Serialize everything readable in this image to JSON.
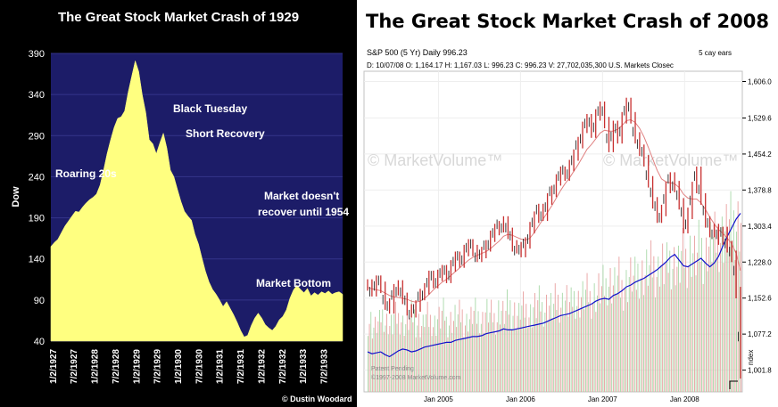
{
  "chart_data": [
    {
      "type": "area",
      "title": "The Great Stock Market Crash of 1929",
      "ylabel": "Dow",
      "ylim": [
        40,
        390
      ],
      "yticks": [
        40,
        90,
        140,
        190,
        240,
        290,
        340,
        390
      ],
      "xticks": [
        "1/2/1927",
        "7/2/1927",
        "1/2/1928",
        "7/2/1928",
        "1/2/1929",
        "7/2/1929",
        "1/2/1930",
        "7/2/1930",
        "1/2/1931",
        "7/2/1931",
        "1/2/1932",
        "7/2/1932",
        "1/2/1933",
        "7/2/1933"
      ],
      "x": [
        0,
        1,
        2,
        3,
        4,
        5,
        6,
        7,
        8,
        9,
        10,
        11,
        12,
        13,
        14,
        15,
        16,
        17,
        18,
        19,
        20,
        21,
        22,
        23,
        24,
        25,
        26,
        27,
        28,
        29,
        30,
        31,
        32,
        33,
        34,
        35,
        36,
        37,
        38,
        39,
        40,
        41,
        42,
        43,
        44,
        45,
        46,
        47,
        48,
        49,
        50,
        51,
        52,
        53,
        54,
        55,
        56,
        57,
        58,
        59,
        60,
        61,
        62,
        63,
        64,
        65,
        66,
        67,
        68,
        69,
        70,
        71,
        72,
        73,
        74,
        75,
        76,
        77,
        78,
        79,
        80,
        81,
        82,
        83
      ],
      "values": [
        155,
        160,
        164,
        172,
        180,
        186,
        192,
        198,
        197,
        203,
        208,
        212,
        215,
        219,
        230,
        248,
        268,
        285,
        300,
        311,
        313,
        320,
        343,
        362,
        381,
        368,
        340,
        318,
        285,
        280,
        268,
        281,
        293,
        275,
        248,
        240,
        225,
        210,
        198,
        192,
        187,
        170,
        158,
        141,
        125,
        112,
        103,
        97,
        90,
        82,
        88,
        80,
        72,
        63,
        53,
        45,
        47,
        59,
        68,
        74,
        68,
        60,
        56,
        53,
        58,
        66,
        70,
        78,
        92,
        102,
        108,
        103,
        99,
        104,
        95,
        99,
        96,
        100,
        98,
        101,
        97,
        99,
        100,
        97
      ],
      "fill_color": "#ffff80",
      "background": "#1c1c68",
      "annotations": [
        "Roaring 20s",
        "Black Tuesday",
        "Short Recovery",
        "Market doesn't",
        "recover until 1954",
        "Market Bottom"
      ],
      "credit": "© Dustin Woodard"
    },
    {
      "type": "line",
      "title": "The Great Stock Market Crash of 2008",
      "header": {
        "symbol": "S&P 500  (5 Yr) Daily   996.23",
        "period": "5 cay ears",
        "ohlc": "D: 10/07/08  O: 1,164.17  H: 1,167.03  L: 996.23  C: 996.23  V: 27,702,035,300  U.S. Markets Closec"
      },
      "watermark": "© MarketVolume™",
      "footer": [
        "Patent Pending",
        "©1997-2008 MarketVolume.com"
      ],
      "xticks": [
        "Jan 2005",
        "Jan 2006",
        "Jan 2007",
        "Jan 2008"
      ],
      "yticks": [
        "1,606.0",
        "1,529.6",
        "1,454.2",
        "1,378.8",
        "1,303.4",
        "1,228.0",
        "1,152.6",
        "1,077.2",
        "1,001.8"
      ],
      "ylim": [
        960,
        1620
      ],
      "right_label": "ndex",
      "series": [],
      "price": [
        1180,
        1168,
        1188,
        1175,
        1140,
        1132,
        1170,
        1178,
        1152,
        1128,
        1124,
        1136,
        1160,
        1172,
        1198,
        1185,
        1200,
        1210,
        1196,
        1220,
        1238,
        1228,
        1252,
        1264,
        1252,
        1240,
        1248,
        1262,
        1282,
        1296,
        1302,
        1312,
        1288,
        1262,
        1258,
        1250,
        1268,
        1300,
        1322,
        1338,
        1326,
        1360,
        1376,
        1400,
        1416,
        1410,
        1430,
        1452,
        1478,
        1510,
        1526,
        1500,
        1536,
        1552,
        1520,
        1470,
        1512,
        1488,
        1530,
        1560,
        1530,
        1488,
        1462,
        1440,
        1396,
        1352,
        1322,
        1336,
        1384,
        1404,
        1386,
        1350,
        1300,
        1330,
        1384,
        1416,
        1360,
        1312,
        1292,
        1296,
        1276,
        1290,
        1260,
        1240,
        1164,
        996
      ],
      "ma": [
        1175,
        1172,
        1170,
        1168,
        1163,
        1158,
        1155,
        1154,
        1152,
        1150,
        1146,
        1144,
        1146,
        1152,
        1160,
        1170,
        1178,
        1186,
        1192,
        1200,
        1208,
        1216,
        1224,
        1232,
        1238,
        1242,
        1246,
        1250,
        1256,
        1264,
        1272,
        1282,
        1286,
        1284,
        1280,
        1276,
        1274,
        1278,
        1290,
        1304,
        1318,
        1332,
        1346,
        1362,
        1378,
        1392,
        1404,
        1418,
        1432,
        1448,
        1464,
        1474,
        1486,
        1498,
        1504,
        1502,
        1502,
        1506,
        1514,
        1524,
        1526,
        1520,
        1508,
        1490,
        1468,
        1444,
        1420,
        1402,
        1396,
        1394,
        1392,
        1384,
        1370,
        1362,
        1360,
        1360,
        1352,
        1338,
        1322,
        1308,
        1296,
        1288,
        1278,
        1266,
        1246,
        1210
      ],
      "line_volume": [
        1040,
        1036,
        1038,
        1040,
        1034,
        1030,
        1036,
        1042,
        1046,
        1044,
        1040,
        1042,
        1046,
        1050,
        1052,
        1054,
        1056,
        1058,
        1060,
        1060,
        1064,
        1066,
        1068,
        1070,
        1072,
        1072,
        1074,
        1078,
        1080,
        1082,
        1084,
        1088,
        1086,
        1086,
        1088,
        1090,
        1092,
        1094,
        1096,
        1098,
        1100,
        1104,
        1108,
        1112,
        1116,
        1118,
        1120,
        1124,
        1128,
        1132,
        1136,
        1140,
        1146,
        1150,
        1152,
        1150,
        1158,
        1162,
        1168,
        1176,
        1180,
        1186,
        1190,
        1194,
        1200,
        1206,
        1212,
        1220,
        1228,
        1238,
        1244,
        1232,
        1220,
        1218,
        1224,
        1230,
        1236,
        1226,
        1218,
        1226,
        1240,
        1262,
        1282,
        1300,
        1318,
        1330
      ],
      "volume_bars": [
        0.42,
        0.38,
        0.4,
        0.45,
        0.41,
        0.39,
        0.44,
        0.43,
        0.4,
        0.42,
        0.45,
        0.41,
        0.39,
        0.44,
        0.42,
        0.4,
        0.43,
        0.46,
        0.41,
        0.42,
        0.44,
        0.45,
        0.41,
        0.43,
        0.46,
        0.44,
        0.42,
        0.47,
        0.45,
        0.43,
        0.48,
        0.46,
        0.5,
        0.47,
        0.45,
        0.49,
        0.48,
        0.46,
        0.5,
        0.52,
        0.49,
        0.51,
        0.5,
        0.53,
        0.52,
        0.54,
        0.51,
        0.55,
        0.53,
        0.56,
        0.58,
        0.55,
        0.57,
        0.6,
        0.62,
        0.65,
        0.63,
        0.66,
        0.61,
        0.64,
        0.68,
        0.66,
        0.7,
        0.69,
        0.72,
        0.74,
        0.71,
        0.75,
        0.73,
        0.77,
        0.76,
        0.74,
        0.8,
        0.78,
        0.82,
        0.79,
        0.84,
        0.81,
        0.86,
        0.88,
        0.9,
        0.92,
        0.95,
        0.98,
        0.99,
        1.0
      ],
      "colors": {
        "price": "#c83030",
        "ma": "#e08080",
        "line_volume": "#1010cc",
        "volume_up": "#a8d8a8",
        "volume_down": "#e8a0a0"
      }
    }
  ]
}
